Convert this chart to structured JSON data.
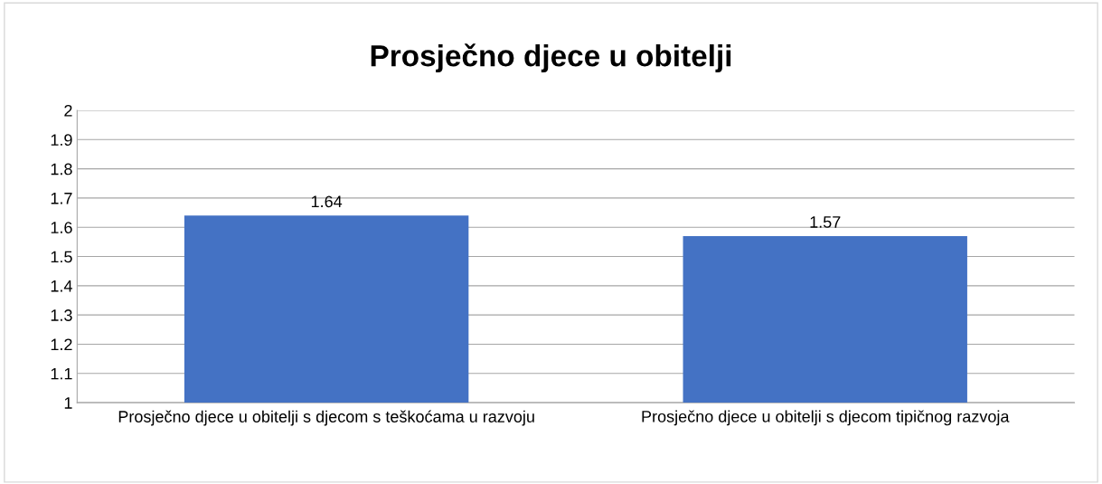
{
  "chart_data": {
    "type": "bar",
    "title": "Prosječno djece u obitelji",
    "categories": [
      "Prosječno djece u obitelji s djecom s teškoćama u razvoju",
      "Prosječno djece u obitelji s djecom tipičnog razvoja"
    ],
    "values": [
      1.64,
      1.57
    ],
    "color": "#4472c4",
    "ylim": [
      1,
      2
    ],
    "yticks": [
      1,
      1.1,
      1.2,
      1.3,
      1.4,
      1.5,
      1.6,
      1.7,
      1.8,
      1.9,
      2
    ],
    "grid": "y",
    "data_labels": true
  }
}
